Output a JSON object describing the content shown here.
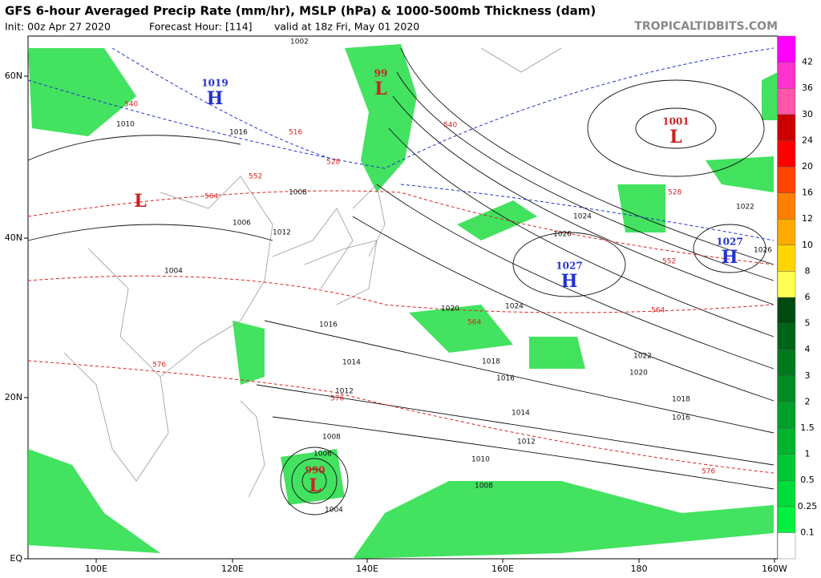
{
  "header": {
    "title": "GFS 6-hour Averaged Precip Rate (mm/hr), MSLP (hPa) & 1000-500mb Thickness (dam)",
    "init": "Init: 00z Apr 27 2020",
    "forecast": "Forecast Hour: [114]",
    "valid": "valid at 18z Fri, May 01 2020",
    "source": "TROPICALTIDBITS.COM"
  },
  "axes": {
    "lat_labels": [
      "60N",
      "40N",
      "20N",
      "EQ"
    ],
    "lon_labels": [
      "100E",
      "120E",
      "140E",
      "160E",
      "180",
      "160W"
    ]
  },
  "colorbar": {
    "ticks": [
      "0.1",
      "0.25",
      "0.5",
      "1",
      "1.5",
      "2",
      "3",
      "4",
      "5",
      "6",
      "8",
      "10",
      "12",
      "16",
      "20",
      "24",
      "30",
      "36",
      "42"
    ],
    "colors": [
      "#ffffff",
      "#00f040",
      "#00dc3a",
      "#00c834",
      "#00b42e",
      "#00a028",
      "#008c22",
      "#00781c",
      "#006416",
      "#004a10",
      "#ffff55",
      "#ffd700",
      "#ffaa00",
      "#ff7f00",
      "#ff4500",
      "#ff0000",
      "#cc0000",
      "#ff55aa",
      "#ff33cc",
      "#ff00ff"
    ]
  },
  "map": {
    "centers": [
      {
        "type": "H",
        "value": "1019"
      },
      {
        "type": "L",
        "value": "99"
      },
      {
        "type": "L",
        "value": "1001"
      },
      {
        "type": "H",
        "value": "1027"
      },
      {
        "type": "H",
        "value": "1027"
      },
      {
        "type": "L",
        "value": "990"
      },
      {
        "type": "L"
      }
    ],
    "isobar_labels": [
      "1002",
      "1010",
      "1012",
      "1008",
      "1006",
      "1004",
      "1016",
      "1020",
      "1024",
      "1026",
      "1022",
      "1014",
      "1018",
      "1016",
      "1020",
      "1024",
      "1022",
      "1018",
      "1016",
      "1014",
      "1012",
      "1010",
      "1008",
      "1006",
      "1004",
      "1008",
      "1012",
      "1016",
      "1026"
    ],
    "thickness_labels": [
      "540",
      "528",
      "516",
      "552",
      "564",
      "576",
      "552",
      "564",
      "564",
      "576",
      "576",
      "540",
      "528"
    ]
  }
}
